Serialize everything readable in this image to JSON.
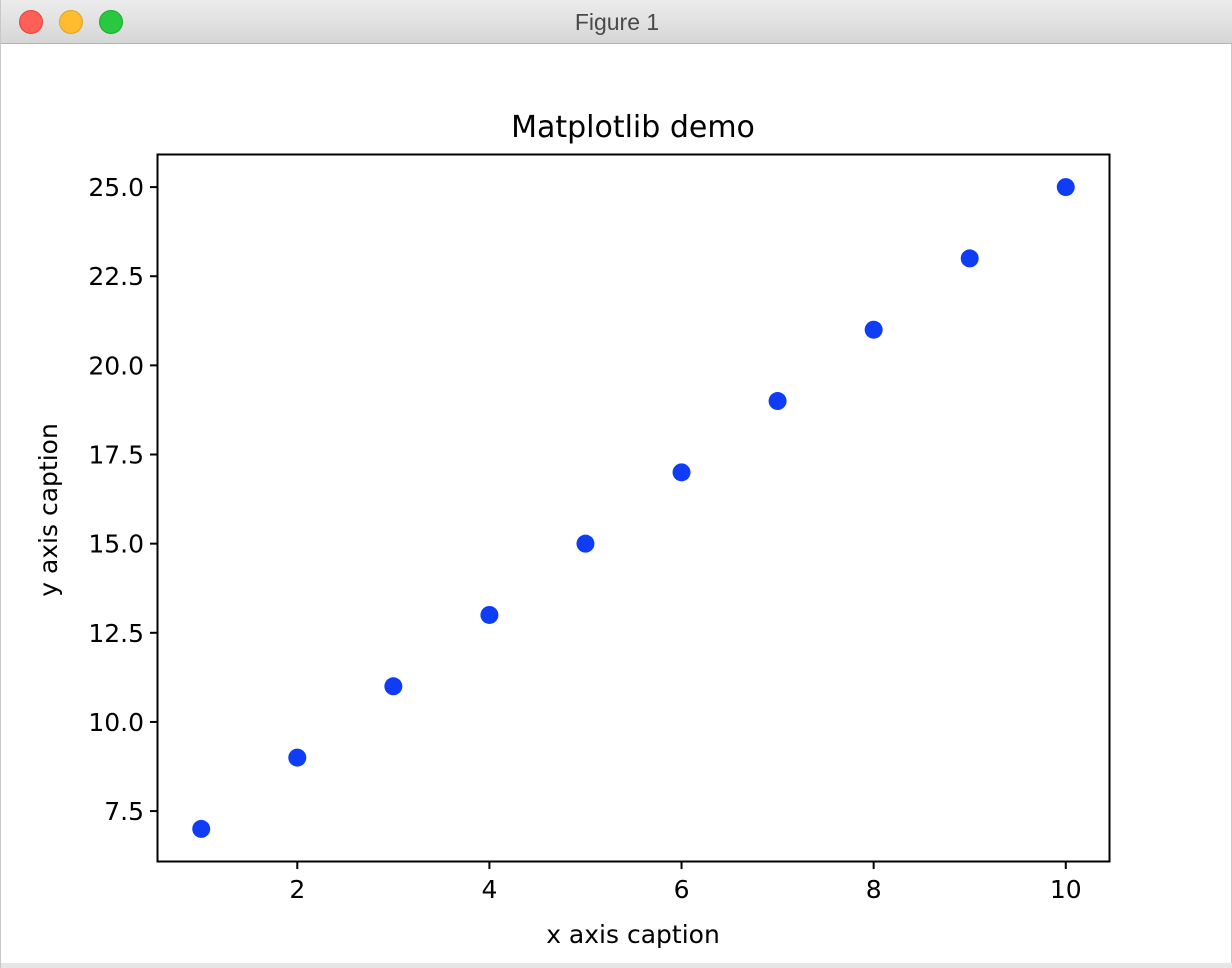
{
  "window": {
    "title": "Figure 1"
  },
  "colors": {
    "marker": "#0f3cf5",
    "axes": "#000000"
  },
  "chart_data": {
    "type": "scatter",
    "title": "Matplotlib demo",
    "xlabel": "x axis caption",
    "ylabel": "y axis caption",
    "x": [
      1,
      2,
      3,
      4,
      5,
      6,
      7,
      8,
      9,
      10
    ],
    "y": [
      7,
      9,
      11,
      13,
      15,
      17,
      19,
      21,
      23,
      25
    ],
    "xlim": [
      0.55,
      10.45
    ],
    "ylim": [
      6.1,
      25.9
    ],
    "xticks": [
      2,
      4,
      6,
      8,
      10
    ],
    "xtick_labels": [
      "2",
      "4",
      "6",
      "8",
      "10"
    ],
    "yticks": [
      7.5,
      10.0,
      12.5,
      15.0,
      17.5,
      20.0,
      22.5,
      25.0
    ],
    "ytick_labels": [
      "7.5",
      "10.0",
      "12.5",
      "15.0",
      "17.5",
      "20.0",
      "22.5",
      "25.0"
    ],
    "grid": false,
    "legend": false
  }
}
